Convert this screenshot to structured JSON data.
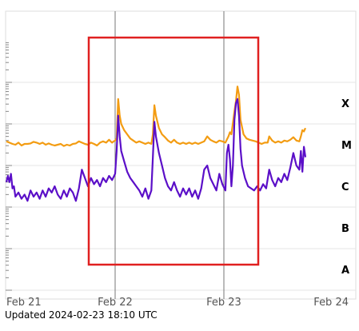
{
  "chart_data": {
    "type": "line",
    "x_tick_labels": [
      "Feb 21",
      "Feb 22",
      "Feb 23",
      "Feb 24"
    ],
    "x_range": [
      "2024-02-21",
      "2024-02-24"
    ],
    "flare_class_labels": [
      "X",
      "M",
      "C",
      "B",
      "A"
    ],
    "y_scale": "log",
    "grid": true,
    "series": [
      {
        "color": "#f39c12",
        "points": [
          [
            "2024-02-21T00:00",
            0.58
          ],
          [
            "2024-02-21T00:40",
            0.55
          ],
          [
            "2024-02-21T01:20",
            0.52
          ],
          [
            "2024-02-21T02:00",
            0.5
          ],
          [
            "2024-02-21T02:40",
            0.55
          ],
          [
            "2024-02-21T03:20",
            0.48
          ],
          [
            "2024-02-21T04:00",
            0.52
          ],
          [
            "2024-02-21T04:40",
            0.52
          ],
          [
            "2024-02-21T05:20",
            0.53
          ],
          [
            "2024-02-21T06:00",
            0.57
          ],
          [
            "2024-02-21T06:40",
            0.55
          ],
          [
            "2024-02-21T07:20",
            0.52
          ],
          [
            "2024-02-21T08:00",
            0.55
          ],
          [
            "2024-02-21T08:40",
            0.5
          ],
          [
            "2024-02-21T09:20",
            0.53
          ],
          [
            "2024-02-21T10:00",
            0.5
          ],
          [
            "2024-02-21T10:40",
            0.48
          ],
          [
            "2024-02-21T11:20",
            0.5
          ],
          [
            "2024-02-21T12:00",
            0.52
          ],
          [
            "2024-02-21T12:40",
            0.47
          ],
          [
            "2024-02-21T13:20",
            0.5
          ],
          [
            "2024-02-21T14:00",
            0.48
          ],
          [
            "2024-02-21T14:40",
            0.52
          ],
          [
            "2024-02-21T15:20",
            0.53
          ],
          [
            "2024-02-21T16:00",
            0.58
          ],
          [
            "2024-02-21T16:40",
            0.55
          ],
          [
            "2024-02-21T17:20",
            0.52
          ],
          [
            "2024-02-21T18:00",
            0.5
          ],
          [
            "2024-02-21T18:40",
            0.55
          ],
          [
            "2024-02-21T19:20",
            0.52
          ],
          [
            "2024-02-21T20:00",
            0.48
          ],
          [
            "2024-02-21T20:40",
            0.55
          ],
          [
            "2024-02-21T21:20",
            0.58
          ],
          [
            "2024-02-21T22:00",
            0.55
          ],
          [
            "2024-02-21T22:40",
            0.62
          ],
          [
            "2024-02-21T23:00",
            0.58
          ],
          [
            "2024-02-21T23:20",
            0.55
          ],
          [
            "2024-02-21T23:40",
            0.58
          ],
          [
            "2024-02-22T00:00",
            0.6
          ],
          [
            "2024-02-22T00:20",
            0.65
          ],
          [
            "2024-02-22T00:40",
            1.6
          ],
          [
            "2024-02-22T01:00",
            1.2
          ],
          [
            "2024-02-22T01:20",
            1.0
          ],
          [
            "2024-02-22T02:00",
            0.85
          ],
          [
            "2024-02-22T02:40",
            0.75
          ],
          [
            "2024-02-22T03:20",
            0.65
          ],
          [
            "2024-02-22T04:00",
            0.6
          ],
          [
            "2024-02-22T04:40",
            0.55
          ],
          [
            "2024-02-22T05:20",
            0.58
          ],
          [
            "2024-02-22T06:00",
            0.55
          ],
          [
            "2024-02-22T06:40",
            0.52
          ],
          [
            "2024-02-22T07:20",
            0.55
          ],
          [
            "2024-02-22T08:00",
            0.52
          ],
          [
            "2024-02-22T08:20",
            0.75
          ],
          [
            "2024-02-22T08:40",
            1.45
          ],
          [
            "2024-02-22T09:00",
            1.2
          ],
          [
            "2024-02-22T09:40",
            0.9
          ],
          [
            "2024-02-22T10:20",
            0.75
          ],
          [
            "2024-02-22T11:00",
            0.68
          ],
          [
            "2024-02-22T11:40",
            0.6
          ],
          [
            "2024-02-22T12:20",
            0.55
          ],
          [
            "2024-02-22T13:00",
            0.62
          ],
          [
            "2024-02-22T13:40",
            0.55
          ],
          [
            "2024-02-22T14:20",
            0.52
          ],
          [
            "2024-02-22T15:00",
            0.55
          ],
          [
            "2024-02-22T15:40",
            0.52
          ],
          [
            "2024-02-22T16:20",
            0.55
          ],
          [
            "2024-02-22T17:00",
            0.52
          ],
          [
            "2024-02-22T17:40",
            0.55
          ],
          [
            "2024-02-22T18:20",
            0.52
          ],
          [
            "2024-02-22T19:00",
            0.55
          ],
          [
            "2024-02-22T19:40",
            0.58
          ],
          [
            "2024-02-22T20:20",
            0.7
          ],
          [
            "2024-02-22T21:00",
            0.62
          ],
          [
            "2024-02-22T21:40",
            0.58
          ],
          [
            "2024-02-22T22:20",
            0.55
          ],
          [
            "2024-02-22T23:00",
            0.6
          ],
          [
            "2024-02-22T23:40",
            0.58
          ],
          [
            "2024-02-23T00:20",
            0.55
          ],
          [
            "2024-02-23T01:00",
            0.7
          ],
          [
            "2024-02-23T01:20",
            0.8
          ],
          [
            "2024-02-23T01:40",
            0.75
          ],
          [
            "2024-02-23T02:20",
            1.3
          ],
          [
            "2024-02-23T02:40",
            1.55
          ],
          [
            "2024-02-23T03:00",
            1.9
          ],
          [
            "2024-02-23T03:20",
            1.7
          ],
          [
            "2024-02-23T03:40",
            1.1
          ],
          [
            "2024-02-23T04:20",
            0.75
          ],
          [
            "2024-02-23T05:00",
            0.65
          ],
          [
            "2024-02-23T05:40",
            0.62
          ],
          [
            "2024-02-23T06:20",
            0.6
          ],
          [
            "2024-02-23T07:00",
            0.58
          ],
          [
            "2024-02-23T07:40",
            0.55
          ],
          [
            "2024-02-23T08:20",
            0.52
          ],
          [
            "2024-02-23T09:00",
            0.55
          ],
          [
            "2024-02-23T09:40",
            0.55
          ],
          [
            "2024-02-23T10:00",
            0.7
          ],
          [
            "2024-02-23T10:40",
            0.6
          ],
          [
            "2024-02-23T11:20",
            0.55
          ],
          [
            "2024-02-23T12:00",
            0.58
          ],
          [
            "2024-02-23T12:40",
            0.55
          ],
          [
            "2024-02-23T13:20",
            0.6
          ],
          [
            "2024-02-23T14:00",
            0.58
          ],
          [
            "2024-02-23T14:40",
            0.62
          ],
          [
            "2024-02-23T15:20",
            0.68
          ],
          [
            "2024-02-23T16:00",
            0.6
          ],
          [
            "2024-02-23T16:40",
            0.58
          ],
          [
            "2024-02-23T17:00",
            0.7
          ],
          [
            "2024-02-23T17:20",
            0.85
          ],
          [
            "2024-02-23T17:40",
            0.82
          ],
          [
            "2024-02-23T18:00",
            0.9
          ]
        ]
      },
      {
        "color": "#5b0fc8",
        "points": [
          [
            "2024-02-21T00:00",
            -0.4
          ],
          [
            "2024-02-21T00:20",
            -0.25
          ],
          [
            "2024-02-21T00:40",
            -0.4
          ],
          [
            "2024-02-21T01:00",
            -0.2
          ],
          [
            "2024-02-21T01:20",
            -0.55
          ],
          [
            "2024-02-21T01:40",
            -0.5
          ],
          [
            "2024-02-21T02:00",
            -0.75
          ],
          [
            "2024-02-21T02:40",
            -0.65
          ],
          [
            "2024-02-21T03:20",
            -0.8
          ],
          [
            "2024-02-21T04:00",
            -0.7
          ],
          [
            "2024-02-21T04:40",
            -0.85
          ],
          [
            "2024-02-21T05:20",
            -0.6
          ],
          [
            "2024-02-21T06:00",
            -0.75
          ],
          [
            "2024-02-21T06:40",
            -0.65
          ],
          [
            "2024-02-21T07:20",
            -0.8
          ],
          [
            "2024-02-21T08:00",
            -0.6
          ],
          [
            "2024-02-21T08:40",
            -0.75
          ],
          [
            "2024-02-21T09:20",
            -0.55
          ],
          [
            "2024-02-21T10:00",
            -0.65
          ],
          [
            "2024-02-21T10:40",
            -0.5
          ],
          [
            "2024-02-21T11:20",
            -0.7
          ],
          [
            "2024-02-21T12:00",
            -0.8
          ],
          [
            "2024-02-21T12:40",
            -0.6
          ],
          [
            "2024-02-21T13:20",
            -0.75
          ],
          [
            "2024-02-21T14:00",
            -0.55
          ],
          [
            "2024-02-21T14:40",
            -0.65
          ],
          [
            "2024-02-21T15:20",
            -0.85
          ],
          [
            "2024-02-21T16:00",
            -0.55
          ],
          [
            "2024-02-21T16:40",
            -0.1
          ],
          [
            "2024-02-21T17:20",
            -0.3
          ],
          [
            "2024-02-21T18:00",
            -0.5
          ],
          [
            "2024-02-21T18:40",
            -0.3
          ],
          [
            "2024-02-21T19:20",
            -0.45
          ],
          [
            "2024-02-21T20:00",
            -0.35
          ],
          [
            "2024-02-21T20:40",
            -0.5
          ],
          [
            "2024-02-21T21:20",
            -0.3
          ],
          [
            "2024-02-21T22:00",
            -0.4
          ],
          [
            "2024-02-21T22:40",
            -0.25
          ],
          [
            "2024-02-21T23:20",
            -0.35
          ],
          [
            "2024-02-22T00:00",
            -0.2
          ],
          [
            "2024-02-22T00:20",
            0.35
          ],
          [
            "2024-02-22T00:40",
            1.2
          ],
          [
            "2024-02-22T01:00",
            0.7
          ],
          [
            "2024-02-22T01:20",
            0.35
          ],
          [
            "2024-02-22T02:00",
            0.1
          ],
          [
            "2024-02-22T02:40",
            -0.15
          ],
          [
            "2024-02-22T03:20",
            -0.3
          ],
          [
            "2024-02-22T04:00",
            -0.4
          ],
          [
            "2024-02-22T04:40",
            -0.5
          ],
          [
            "2024-02-22T05:20",
            -0.6
          ],
          [
            "2024-02-22T06:00",
            -0.75
          ],
          [
            "2024-02-22T06:40",
            -0.55
          ],
          [
            "2024-02-22T07:20",
            -0.8
          ],
          [
            "2024-02-22T08:00",
            -0.6
          ],
          [
            "2024-02-22T08:20",
            0.2
          ],
          [
            "2024-02-22T08:40",
            1.05
          ],
          [
            "2024-02-22T09:00",
            0.7
          ],
          [
            "2024-02-22T09:40",
            0.3
          ],
          [
            "2024-02-22T10:20",
            0.0
          ],
          [
            "2024-02-22T11:00",
            -0.3
          ],
          [
            "2024-02-22T11:40",
            -0.5
          ],
          [
            "2024-02-22T12:20",
            -0.6
          ],
          [
            "2024-02-22T13:00",
            -0.4
          ],
          [
            "2024-02-22T13:40",
            -0.6
          ],
          [
            "2024-02-22T14:20",
            -0.75
          ],
          [
            "2024-02-22T15:00",
            -0.55
          ],
          [
            "2024-02-22T15:40",
            -0.7
          ],
          [
            "2024-02-22T16:20",
            -0.55
          ],
          [
            "2024-02-22T17:00",
            -0.75
          ],
          [
            "2024-02-22T17:40",
            -0.6
          ],
          [
            "2024-02-22T18:20",
            -0.8
          ],
          [
            "2024-02-22T19:00",
            -0.55
          ],
          [
            "2024-02-22T19:40",
            -0.1
          ],
          [
            "2024-02-22T20:20",
            0.0
          ],
          [
            "2024-02-22T21:00",
            -0.3
          ],
          [
            "2024-02-22T21:40",
            -0.45
          ],
          [
            "2024-02-22T22:20",
            -0.6
          ],
          [
            "2024-02-22T23:00",
            -0.2
          ],
          [
            "2024-02-22T23:40",
            -0.45
          ],
          [
            "2024-02-23T00:20",
            -0.6
          ],
          [
            "2024-02-23T00:40",
            0.3
          ],
          [
            "2024-02-23T01:00",
            0.5
          ],
          [
            "2024-02-23T01:20",
            0.15
          ],
          [
            "2024-02-23T01:40",
            -0.5
          ],
          [
            "2024-02-23T02:00",
            0.0
          ],
          [
            "2024-02-23T02:20",
            1.1
          ],
          [
            "2024-02-23T02:40",
            1.5
          ],
          [
            "2024-02-23T03:00",
            1.6
          ],
          [
            "2024-02-23T03:20",
            1.2
          ],
          [
            "2024-02-23T03:40",
            0.4
          ],
          [
            "2024-02-23T04:00",
            0.0
          ],
          [
            "2024-02-23T04:40",
            -0.3
          ],
          [
            "2024-02-23T05:20",
            -0.5
          ],
          [
            "2024-02-23T06:00",
            -0.55
          ],
          [
            "2024-02-23T06:40",
            -0.6
          ],
          [
            "2024-02-23T07:20",
            -0.5
          ],
          [
            "2024-02-23T08:00",
            -0.6
          ],
          [
            "2024-02-23T08:40",
            -0.45
          ],
          [
            "2024-02-23T09:20",
            -0.55
          ],
          [
            "2024-02-23T10:00",
            -0.1
          ],
          [
            "2024-02-23T10:40",
            -0.35
          ],
          [
            "2024-02-23T11:20",
            -0.5
          ],
          [
            "2024-02-23T12:00",
            -0.3
          ],
          [
            "2024-02-23T12:40",
            -0.4
          ],
          [
            "2024-02-23T13:20",
            -0.2
          ],
          [
            "2024-02-23T14:00",
            -0.35
          ],
          [
            "2024-02-23T14:40",
            -0.05
          ],
          [
            "2024-02-23T15:20",
            0.3
          ],
          [
            "2024-02-23T16:00",
            0.0
          ],
          [
            "2024-02-23T16:40",
            -0.1
          ],
          [
            "2024-02-23T17:00",
            0.35
          ],
          [
            "2024-02-23T17:20",
            -0.15
          ],
          [
            "2024-02-23T17:40",
            0.45
          ],
          [
            "2024-02-23T18:00",
            0.2
          ]
        ]
      }
    ]
  },
  "footer": {
    "updated": "Updated 2024-02-23 18:10 UTC"
  }
}
